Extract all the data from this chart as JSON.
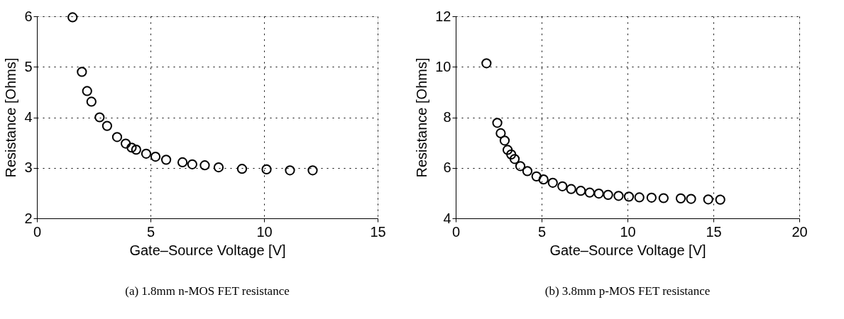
{
  "chart_data": [
    {
      "type": "scatter",
      "xlabel": "Gate–Source Voltage [V]",
      "ylabel": "Resistance [Ohms]",
      "annotations": [
        "(a) 1.8mm n-MOS FET resistance"
      ],
      "xlim": [
        0,
        15
      ],
      "xticks": [
        0,
        5,
        10,
        15
      ],
      "ylim": [
        2,
        6
      ],
      "yticks": [
        2,
        3,
        4,
        5,
        6
      ],
      "grid": true,
      "marker": "circle",
      "series": [
        {
          "color": "#000000",
          "x": [
            1.57,
            1.98,
            2.21,
            2.4,
            2.76,
            3.09,
            3.53,
            3.91,
            4.17,
            4.37,
            4.81,
            5.22,
            5.69,
            6.41,
            6.84,
            7.39,
            8.0,
            9.03,
            10.11,
            11.14,
            12.14
          ],
          "values": [
            5.98,
            4.9,
            4.52,
            4.31,
            4.0,
            3.83,
            3.61,
            3.48,
            3.4,
            3.36,
            3.28,
            3.22,
            3.16,
            3.11,
            3.07,
            3.05,
            3.01,
            2.98,
            2.97,
            2.95,
            2.95
          ]
        }
      ]
    },
    {
      "type": "scatter",
      "xlabel": "Gate–Source Voltage [V]",
      "ylabel": "Resistance [Ohms]",
      "annotations": [
        "(b) 3.8mm p-MOS FET resistance"
      ],
      "xlim": [
        0,
        20
      ],
      "xticks": [
        0,
        5,
        10,
        15,
        20
      ],
      "ylim": [
        4,
        12
      ],
      "yticks": [
        4,
        6,
        8,
        10,
        12
      ],
      "grid": true,
      "marker": "circle",
      "series": [
        {
          "color": "#000000",
          "x": [
            1.79,
            2.42,
            2.62,
            2.85,
            3.02,
            3.23,
            3.43,
            3.76,
            4.17,
            4.7,
            5.11,
            5.65,
            6.21,
            6.72,
            7.28,
            7.8,
            8.33,
            8.87,
            9.48,
            10.08,
            10.69,
            11.4,
            12.1,
            13.1,
            13.7,
            14.7,
            15.4
          ],
          "values": [
            10.14,
            7.78,
            7.37,
            7.08,
            6.71,
            6.53,
            6.35,
            6.07,
            5.87,
            5.66,
            5.54,
            5.41,
            5.27,
            5.16,
            5.09,
            5.02,
            4.98,
            4.93,
            4.89,
            4.86,
            4.83,
            4.82,
            4.8,
            4.79,
            4.77,
            4.75,
            4.74
          ]
        }
      ]
    }
  ]
}
